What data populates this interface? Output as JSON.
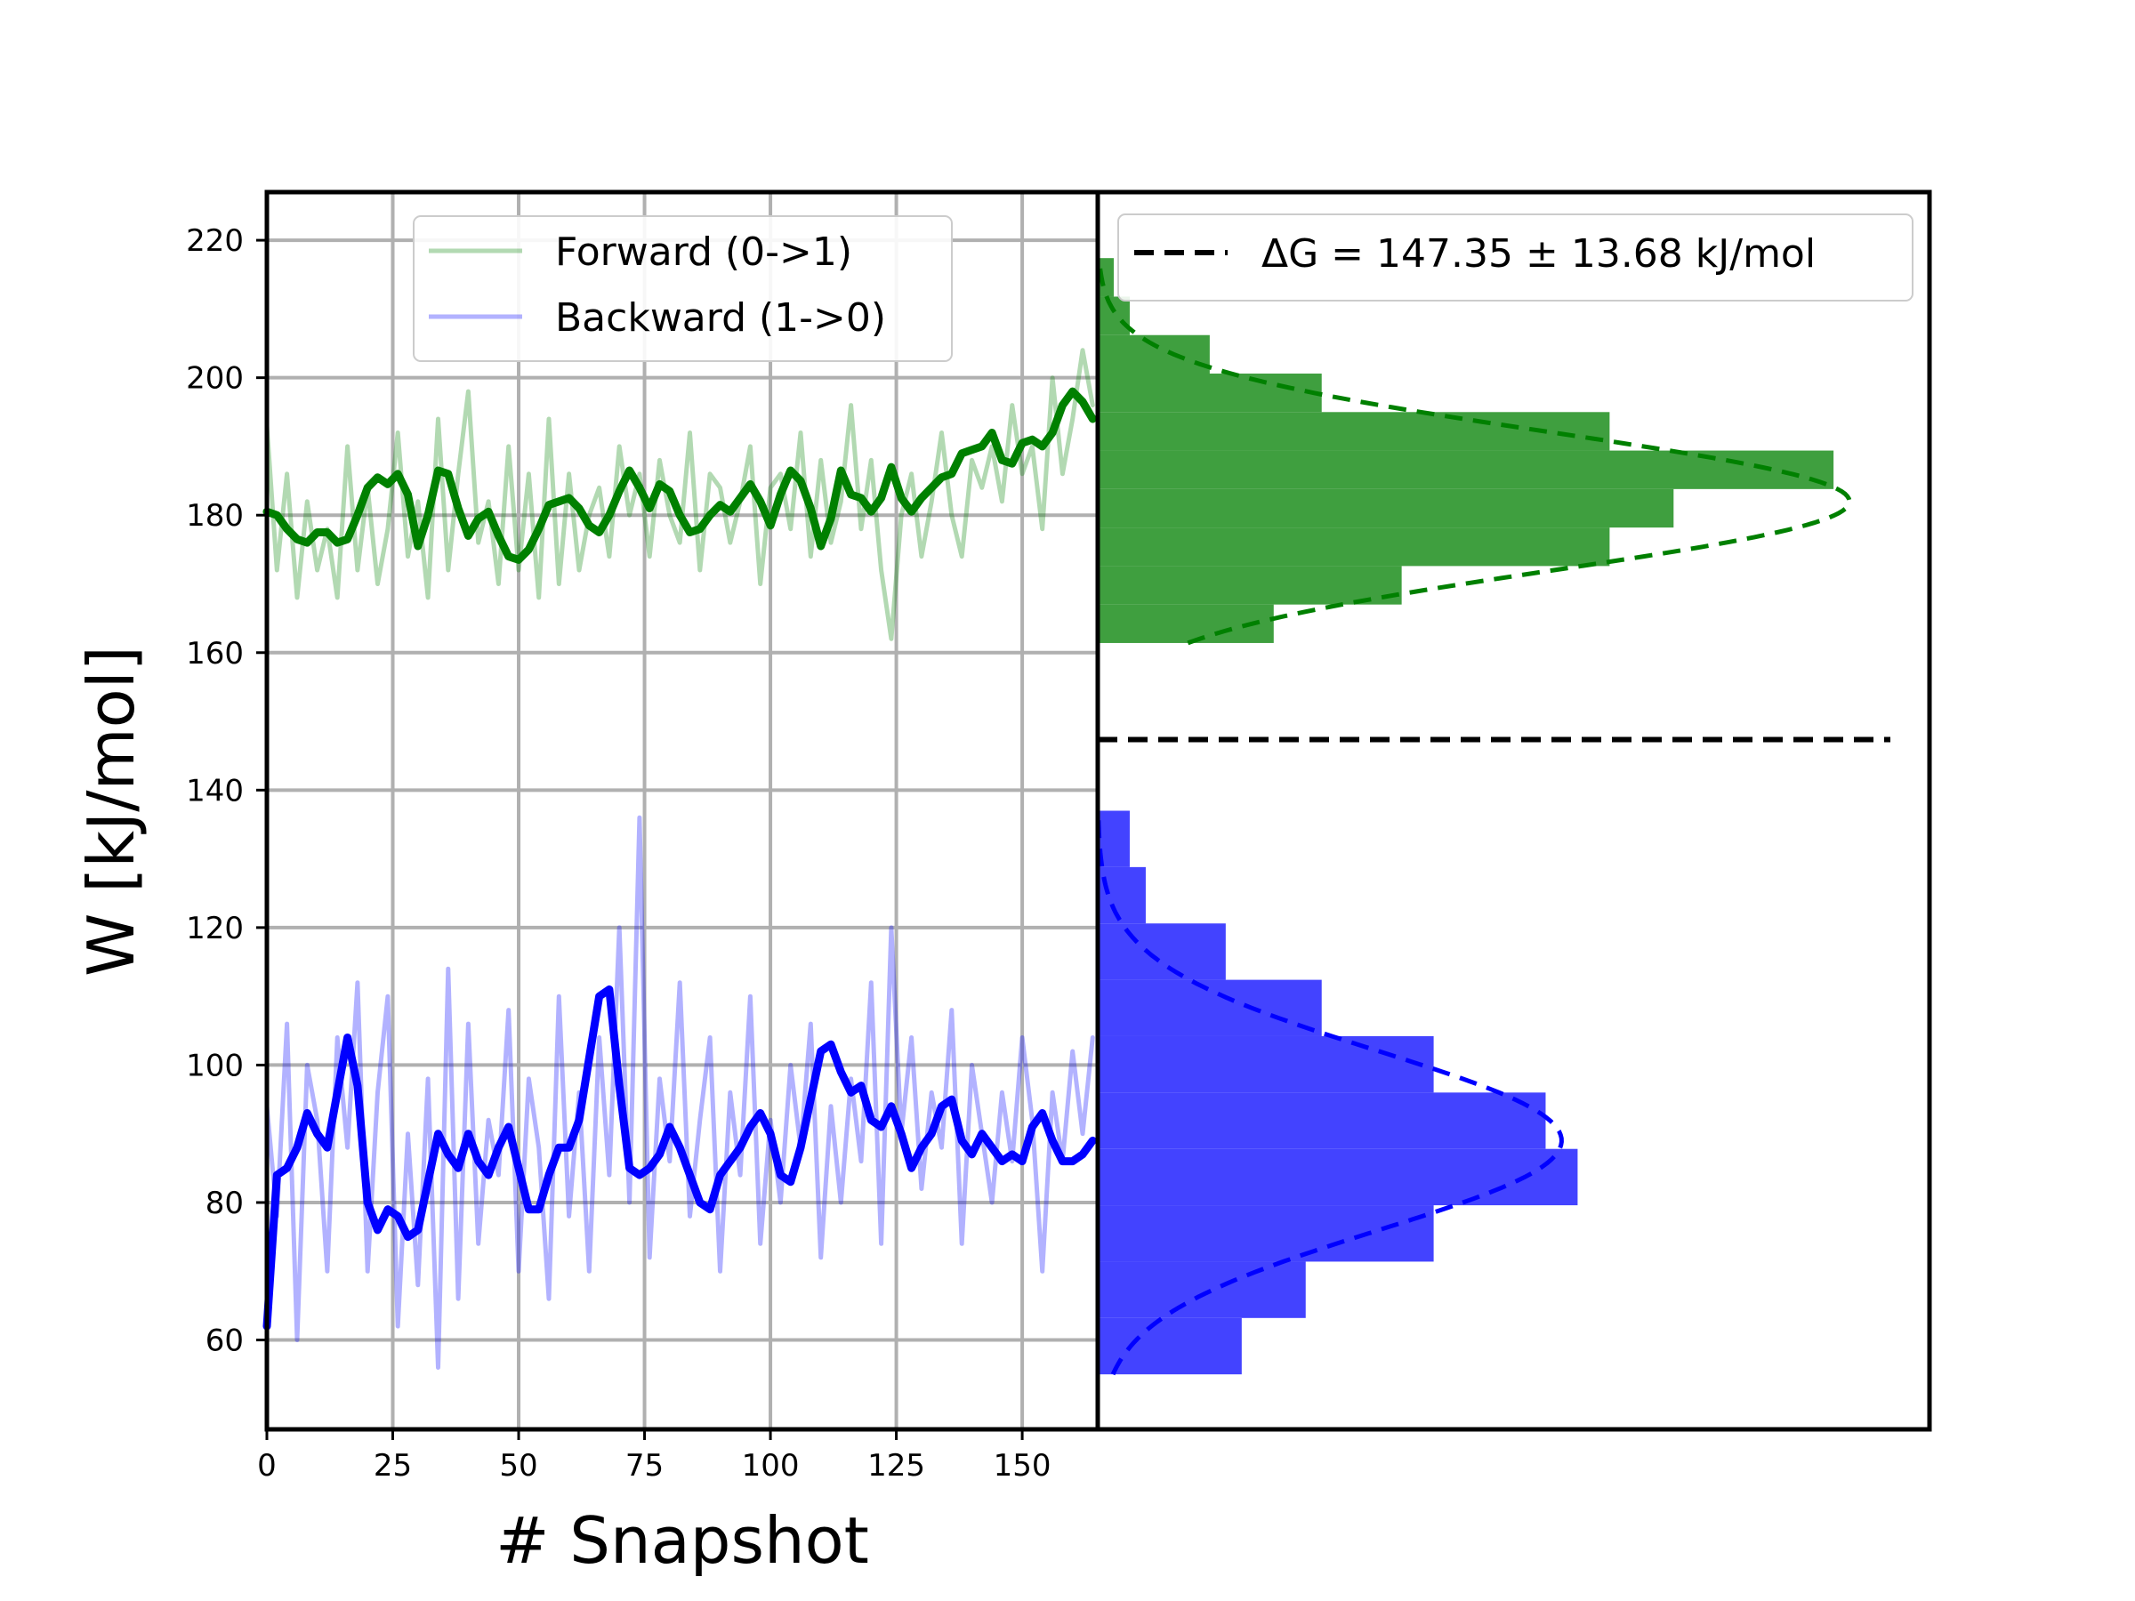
{
  "chart_data": [
    {
      "type": "line",
      "panel": "left",
      "xlabel": "# Snapshot",
      "ylabel": "W [kJ/mol]",
      "xlim": [
        0,
        165
      ],
      "ylim": [
        47,
        227
      ],
      "xticks": [
        0,
        25,
        50,
        75,
        100,
        125,
        150
      ],
      "yticks": [
        60,
        80,
        100,
        120,
        140,
        160,
        180,
        200,
        220
      ],
      "grid": true,
      "legend_position": "upper-center",
      "series": [
        {
          "name": "Forward (0->1)",
          "kind": "raw",
          "color": "#008000",
          "alpha": 0.3,
          "x": [
            0,
            2,
            4,
            6,
            8,
            10,
            12,
            14,
            16,
            18,
            20,
            22,
            24,
            26,
            28,
            30,
            32,
            34,
            36,
            38,
            40,
            42,
            44,
            46,
            48,
            50,
            52,
            54,
            56,
            58,
            60,
            62,
            64,
            66,
            68,
            70,
            72,
            74,
            76,
            78,
            80,
            82,
            84,
            86,
            88,
            90,
            92,
            94,
            96,
            98,
            100,
            102,
            104,
            106,
            108,
            110,
            112,
            114,
            116,
            118,
            120,
            122,
            124,
            126,
            128,
            130,
            132,
            134,
            136,
            138,
            140,
            142,
            144,
            146,
            148,
            150,
            152,
            154,
            156,
            158,
            160,
            162,
            164
          ],
          "values": [
            193,
            172,
            186,
            168,
            182,
            172,
            178,
            168,
            190,
            172,
            184,
            170,
            178,
            192,
            174,
            182,
            168,
            194,
            172,
            186,
            198,
            176,
            182,
            170,
            190,
            172,
            186,
            168,
            194,
            170,
            186,
            172,
            180,
            184,
            174,
            190,
            180,
            186,
            174,
            188,
            180,
            176,
            192,
            172,
            186,
            184,
            176,
            182,
            190,
            170,
            184,
            186,
            178,
            192,
            174,
            188,
            176,
            182,
            196,
            178,
            188,
            172,
            162,
            180,
            186,
            174,
            182,
            192,
            180,
            174,
            188,
            184,
            190,
            182,
            196,
            186,
            190,
            178,
            200,
            186,
            194,
            204,
            196
          ]
        },
        {
          "name": "",
          "kind": "smoothed",
          "color": "#008000",
          "alpha": 1.0,
          "x": [
            0,
            2,
            4,
            6,
            8,
            10,
            12,
            14,
            16,
            18,
            20,
            22,
            24,
            26,
            28,
            30,
            32,
            34,
            36,
            38,
            40,
            42,
            44,
            46,
            48,
            50,
            52,
            54,
            56,
            58,
            60,
            62,
            64,
            66,
            68,
            70,
            72,
            74,
            76,
            78,
            80,
            82,
            84,
            86,
            88,
            90,
            92,
            94,
            96,
            98,
            100,
            102,
            104,
            106,
            108,
            110,
            112,
            114,
            116,
            118,
            120,
            122,
            124,
            126,
            128,
            130,
            132,
            134,
            136,
            138,
            140,
            142,
            144,
            146,
            148,
            150,
            152,
            154,
            156,
            158,
            160,
            162,
            164
          ],
          "values": [
            180.5,
            180,
            178,
            176.5,
            176,
            177.5,
            177.5,
            176,
            176.5,
            180,
            184,
            185.5,
            184.5,
            186,
            183,
            175.5,
            180,
            186.5,
            186,
            181,
            177,
            179.5,
            180.5,
            177,
            174,
            173.5,
            175,
            178,
            181.5,
            182,
            182.5,
            181,
            178.5,
            177.5,
            180,
            183.5,
            186.5,
            184,
            181,
            184.5,
            183.5,
            180,
            177.5,
            178,
            180,
            181.5,
            180.5,
            182.5,
            184.5,
            182,
            178.5,
            183,
            186.5,
            185,
            181,
            175.5,
            179.5,
            186.5,
            183,
            182.5,
            180.5,
            182.5,
            187,
            182.5,
            180.5,
            182.5,
            184,
            185.5,
            186,
            189,
            189.5,
            190,
            192,
            188,
            187.5,
            190.5,
            191,
            190,
            192,
            196,
            198,
            196.5,
            194
          ]
        },
        {
          "name": "Backward (1->0)",
          "kind": "raw",
          "color": "#0000ff",
          "alpha": 0.3,
          "x": [
            0,
            2,
            4,
            6,
            8,
            10,
            12,
            14,
            16,
            18,
            20,
            22,
            24,
            26,
            28,
            30,
            32,
            34,
            36,
            38,
            40,
            42,
            44,
            46,
            48,
            50,
            52,
            54,
            56,
            58,
            60,
            62,
            64,
            66,
            68,
            70,
            72,
            74,
            76,
            78,
            80,
            82,
            84,
            86,
            88,
            90,
            92,
            94,
            96,
            98,
            100,
            102,
            104,
            106,
            108,
            110,
            112,
            114,
            116,
            118,
            120,
            122,
            124,
            126,
            128,
            130,
            132,
            134,
            136,
            138,
            140,
            142,
            144,
            146,
            148,
            150,
            152,
            154,
            156,
            158,
            160,
            162,
            164
          ],
          "values": [
            94,
            78,
            106,
            60,
            100,
            92,
            70,
            104,
            88,
            112,
            70,
            96,
            110,
            62,
            90,
            68,
            98,
            56,
            114,
            66,
            106,
            74,
            92,
            84,
            108,
            70,
            98,
            88,
            66,
            110,
            78,
            96,
            70,
            104,
            84,
            120,
            80,
            136,
            72,
            98,
            86,
            112,
            78,
            92,
            104,
            70,
            96,
            84,
            110,
            74,
            92,
            80,
            100,
            88,
            106,
            72,
            94,
            80,
            98,
            86,
            112,
            74,
            120,
            90,
            104,
            82,
            96,
            88,
            108,
            74,
            100,
            90,
            80,
            96,
            86,
            104,
            92,
            70,
            96,
            86,
            102,
            90,
            104
          ]
        },
        {
          "name": "",
          "kind": "smoothed",
          "color": "#0000ff",
          "alpha": 1.0,
          "x": [
            0,
            2,
            4,
            6,
            8,
            10,
            12,
            14,
            16,
            18,
            20,
            22,
            24,
            26,
            28,
            30,
            32,
            34,
            36,
            38,
            40,
            42,
            44,
            46,
            48,
            50,
            52,
            54,
            56,
            58,
            60,
            62,
            64,
            66,
            68,
            70,
            72,
            74,
            76,
            78,
            80,
            82,
            84,
            86,
            88,
            90,
            92,
            94,
            96,
            98,
            100,
            102,
            104,
            106,
            108,
            110,
            112,
            114,
            116,
            118,
            120,
            122,
            124,
            126,
            128,
            130,
            132,
            134,
            136,
            138,
            140,
            142,
            144,
            146,
            148,
            150,
            152,
            154,
            156,
            158,
            160,
            162,
            164
          ],
          "values": [
            62,
            84,
            85,
            88,
            93,
            90,
            88,
            96,
            104,
            97,
            80,
            76,
            79,
            78,
            75,
            76,
            83,
            90,
            87,
            85,
            90,
            86,
            84,
            88,
            91,
            85,
            79,
            79,
            84,
            88,
            88,
            92,
            101,
            110,
            111,
            97,
            85,
            84,
            85,
            87,
            91,
            88,
            84,
            80,
            79,
            84,
            86,
            88,
            91,
            93,
            90,
            84,
            83,
            88,
            95,
            102,
            103,
            99,
            96,
            97,
            92,
            91,
            94,
            90,
            85,
            88,
            90,
            94,
            95,
            89,
            87,
            90,
            88,
            86,
            87,
            86,
            91,
            93,
            89,
            86,
            86,
            87,
            89
          ]
        }
      ]
    },
    {
      "type": "histogram",
      "panel": "right",
      "orientation": "horizontal",
      "ylim": [
        47,
        227
      ],
      "legend_position": "upper-right",
      "legend": [
        "ΔG = 147.35 ± 13.68 kJ/mol"
      ],
      "reference_line": {
        "y": 147.35,
        "style": "dashed",
        "color": "#000000"
      },
      "series": [
        {
          "name": "",
          "color": "#3f9f3f",
          "bin_edges": [
            161.4,
            167,
            172.6,
            178.2,
            183.8,
            189.4,
            195,
            200.6,
            206.2,
            211.8,
            217.4
          ],
          "counts": [
            11,
            19,
            32,
            36,
            46,
            32,
            14,
            7,
            2,
            1
          ],
          "fit": {
            "mean": 182,
            "std": 10,
            "peak": 47
          }
        },
        {
          "name": "",
          "color": "#4343ff",
          "bin_edges": [
            55,
            63.2,
            71.4,
            79.6,
            87.8,
            96,
            104.2,
            112.4,
            120.6,
            128.8,
            137
          ],
          "counts": [
            9,
            13,
            21,
            30,
            28,
            21,
            14,
            8,
            3,
            2
          ],
          "fit": {
            "mean": 89,
            "std": 13,
            "peak": 29
          }
        }
      ]
    }
  ],
  "colors": {
    "forward": "#008000",
    "backward": "#0000ff",
    "grid": "#b0b0b0",
    "frame": "#000000"
  }
}
